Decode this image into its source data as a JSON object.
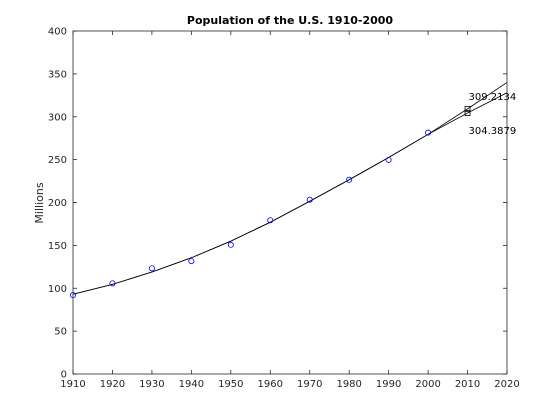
{
  "chart_data": {
    "type": "scatter",
    "title": "Population of the U.S. 1910-2000",
    "xlabel": "",
    "ylabel": "Millions",
    "xlim": [
      1910,
      2020
    ],
    "ylim": [
      0,
      400
    ],
    "x_ticks": [
      "1910",
      "1920",
      "1930",
      "1940",
      "1950",
      "1960",
      "1970",
      "1980",
      "1990",
      "2000",
      "2010",
      "2020"
    ],
    "y_ticks": [
      "0",
      "50",
      "100",
      "150",
      "200",
      "250",
      "300",
      "350",
      "400"
    ],
    "grid": false,
    "series": [
      {
        "kind": "markers",
        "marker": "circle",
        "color": "#0000ff",
        "x": [
          1910,
          1920,
          1930,
          1940,
          1950,
          1960,
          1970,
          1980,
          1990,
          2000
        ],
        "y": [
          91.972,
          105.711,
          123.203,
          131.669,
          150.697,
          179.323,
          203.212,
          226.505,
          249.633,
          281.422
        ]
      },
      {
        "kind": "line",
        "color": "#000000",
        "x": [
          1910,
          1920,
          1930,
          1940,
          1950,
          1960,
          1970,
          1980,
          1990,
          2000,
          2010,
          2020
        ],
        "y": [
          93.0,
          104.5,
          119.0,
          135.5,
          155.0,
          177.0,
          201.5,
          226.5,
          252.5,
          279.5,
          309.2,
          340.0
        ]
      },
      {
        "kind": "line",
        "color": "#000000",
        "x": [
          1910,
          1920,
          1930,
          1940,
          1950,
          1960,
          1970,
          1980,
          1990,
          2000,
          2010,
          2020
        ],
        "y": [
          93.0,
          104.5,
          119.0,
          135.5,
          155.0,
          177.0,
          201.5,
          226.5,
          252.5,
          279.5,
          304.4,
          328.0
        ]
      }
    ],
    "annotations": [
      {
        "x": 2010,
        "y": 309.2134,
        "text": "309.2134",
        "marker": "square"
      },
      {
        "x": 2010,
        "y": 304.3879,
        "text": "304.3879",
        "marker": "square"
      }
    ]
  }
}
